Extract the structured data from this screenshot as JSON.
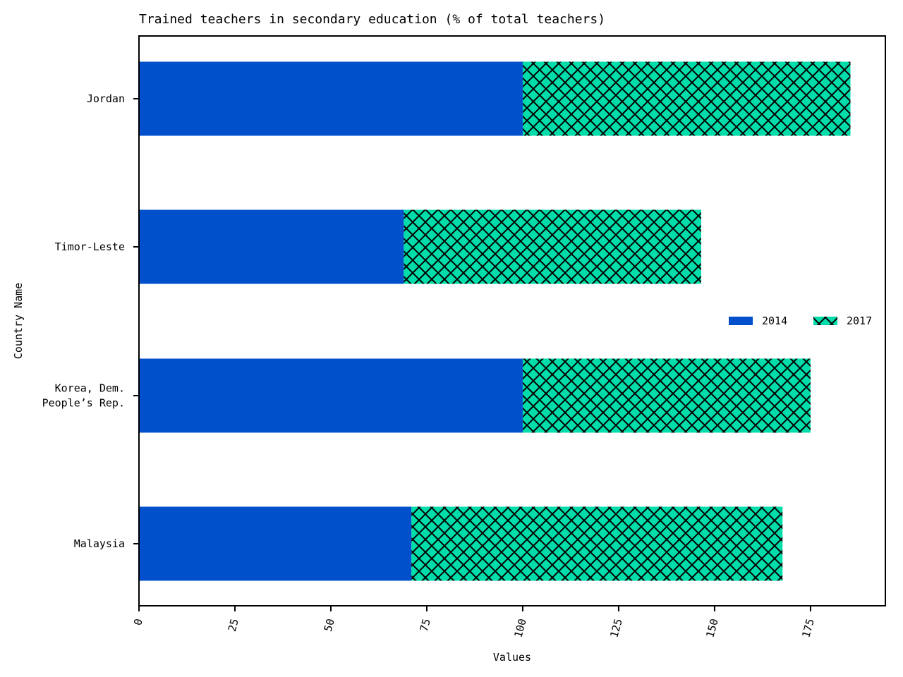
{
  "chart_data": {
    "type": "bar",
    "orientation": "horizontal",
    "stacked": true,
    "title": "Trained teachers in secondary education (% of total teachers)",
    "xlabel": "Values",
    "ylabel": "Country Name",
    "categories": [
      "Jordan",
      "Timor-Leste",
      "Korea, Dem. People’s Rep.",
      "Malaysia"
    ],
    "category_lines": [
      [
        "Jordan"
      ],
      [
        "Timor-Leste"
      ],
      [
        "Korea, Dem.",
        "People’s Rep."
      ],
      [
        "Malaysia"
      ]
    ],
    "series": [
      {
        "name": "2014",
        "values": [
          100,
          69.0,
          100,
          71.0
        ],
        "color": "#0050cc",
        "hatch": "none"
      },
      {
        "name": "2017",
        "values": [
          85.4,
          77.5,
          75.0,
          96.7
        ],
        "color": "#00ddaa",
        "hatch": "cross"
      }
    ],
    "xlim": [
      0,
      194.5
    ],
    "xticks": [
      0,
      25,
      50,
      75,
      100,
      125,
      150,
      175
    ],
    "xtick_rotation": -75,
    "legend": {
      "placement": "center-right",
      "columns": 2
    },
    "grid": false
  }
}
